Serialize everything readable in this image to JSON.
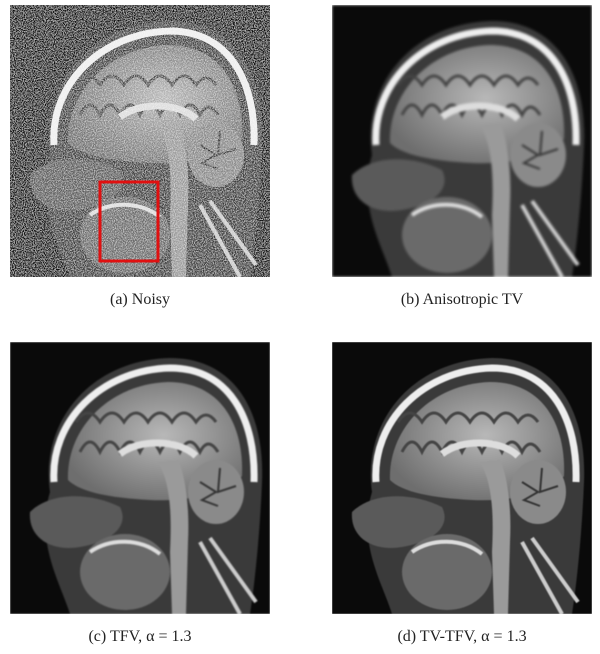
{
  "figure": {
    "panels": [
      {
        "caption": "(a) Noisy"
      },
      {
        "caption": "(b) Anisotropic TV"
      },
      {
        "caption": "(c) TFV, α = 1.3"
      },
      {
        "caption": "(d) TV-TFV, α = 1.3"
      }
    ]
  }
}
